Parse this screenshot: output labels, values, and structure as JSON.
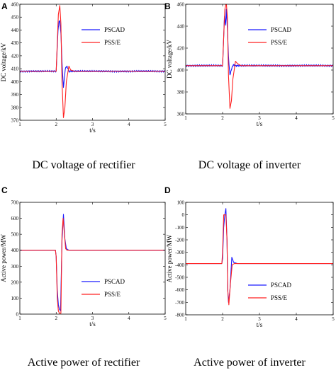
{
  "colors": {
    "pscad": "#1a1aff",
    "psse": "#ff2020"
  },
  "chart_data": [
    {
      "type": "line",
      "panel": "A",
      "caption": "DC voltage of rectifier",
      "xlabel": "t/s",
      "ylabel": "DC voltage/kV",
      "xlim": [
        1,
        5
      ],
      "ylim": [
        370,
        460
      ],
      "xticks": [
        1,
        2,
        3,
        4,
        5
      ],
      "yticks": [
        370,
        380,
        390,
        400,
        410,
        420,
        430,
        440,
        450,
        460
      ],
      "legend": "right",
      "series": [
        {
          "name": "PSCAD",
          "color": "pscad",
          "noise": 0.8,
          "x": [
            1,
            2.0,
            2.02,
            2.05,
            2.08,
            2.1,
            2.13,
            2.16,
            2.2,
            2.25,
            2.3,
            2.35,
            2.4,
            2.5,
            3,
            4,
            5
          ],
          "y": [
            408,
            408,
            420,
            440,
            446,
            447,
            438,
            415,
            395,
            410,
            412,
            408,
            408,
            408,
            408,
            408,
            408
          ]
        },
        {
          "name": "PSS/E",
          "color": "psse",
          "noise": 0,
          "x": [
            1,
            2.0,
            2.03,
            2.06,
            2.1,
            2.13,
            2.16,
            2.2,
            2.24,
            2.28,
            2.35,
            2.4,
            2.5,
            3,
            4,
            5
          ],
          "y": [
            408,
            408,
            430,
            452,
            459,
            445,
            400,
            372,
            380,
            400,
            412,
            409,
            408,
            408,
            408,
            408
          ]
        }
      ]
    },
    {
      "type": "line",
      "panel": "B",
      "caption": "DC voltage of inverter",
      "xlabel": "t/s",
      "ylabel": "DC voltage/kV",
      "xlim": [
        1,
        5
      ],
      "ylim": [
        360,
        460
      ],
      "xticks": [
        1,
        2,
        3,
        4,
        5
      ],
      "yticks": [
        360,
        380,
        400,
        420,
        440,
        460
      ],
      "legend": "right",
      "series": [
        {
          "name": "PSCAD",
          "color": "pscad",
          "noise": 1.0,
          "x": [
            1,
            2.0,
            2.02,
            2.05,
            2.08,
            2.1,
            2.13,
            2.16,
            2.2,
            2.25,
            2.3,
            2.35,
            2.4,
            2.5,
            3,
            4,
            5
          ],
          "y": [
            404,
            404,
            420,
            450,
            440,
            455,
            438,
            412,
            395,
            402,
            405,
            404,
            404,
            404,
            404,
            404,
            404
          ]
        },
        {
          "name": "PSS/E",
          "color": "psse",
          "noise": 0,
          "x": [
            1,
            2.0,
            2.03,
            2.06,
            2.1,
            2.13,
            2.16,
            2.2,
            2.24,
            2.28,
            2.35,
            2.4,
            2.5,
            3,
            4,
            5
          ],
          "y": [
            404,
            404,
            430,
            455,
            462,
            448,
            395,
            365,
            372,
            392,
            408,
            406,
            404,
            404,
            404,
            404
          ]
        }
      ]
    },
    {
      "type": "line",
      "panel": "C",
      "caption": "Active power of rectifier",
      "xlabel": "t/s",
      "ylabel": "Active power/MW",
      "xlim": [
        1,
        5
      ],
      "ylim": [
        0,
        700
      ],
      "xticks": [
        1,
        2,
        3,
        4,
        5
      ],
      "yticks": [
        0,
        100,
        200,
        300,
        400,
        500,
        600,
        700
      ],
      "legend": "bottom-right",
      "series": [
        {
          "name": "PSCAD",
          "color": "pscad",
          "noise": 0,
          "x": [
            1,
            1.98,
            2.0,
            2.03,
            2.06,
            2.09,
            2.12,
            2.16,
            2.2,
            2.24,
            2.28,
            2.35,
            3,
            4,
            5
          ],
          "y": [
            400,
            400,
            360,
            150,
            60,
            30,
            20,
            460,
            625,
            470,
            410,
            400,
            400,
            400,
            400
          ]
        },
        {
          "name": "PSS/E",
          "color": "psse",
          "noise": 0,
          "x": [
            1,
            1.98,
            2.0,
            2.03,
            2.06,
            2.09,
            2.13,
            2.16,
            2.19,
            2.22,
            2.26,
            2.3,
            3,
            4,
            5
          ],
          "y": [
            400,
            400,
            360,
            100,
            20,
            5,
            5,
            500,
            600,
            520,
            410,
            400,
            400,
            400,
            400
          ]
        }
      ]
    },
    {
      "type": "line",
      "panel": "D",
      "caption": "Active power of inverter",
      "xlabel": "t/s",
      "ylabel": "Active power/MW",
      "xlim": [
        1,
        5
      ],
      "ylim": [
        -800,
        100
      ],
      "xticks": [
        1,
        2,
        3,
        4,
        5
      ],
      "yticks": [
        -800,
        -700,
        -600,
        -500,
        -400,
        -300,
        -200,
        -100,
        0,
        100
      ],
      "legend": "bottom-right",
      "series": [
        {
          "name": "PSCAD",
          "color": "pscad",
          "noise": 0,
          "x": [
            1,
            1.98,
            2.0,
            2.03,
            2.06,
            2.09,
            2.12,
            2.14,
            2.16,
            2.2,
            2.25,
            2.3,
            2.4,
            3,
            4,
            5
          ],
          "y": [
            -390,
            -390,
            -350,
            -100,
            0,
            50,
            -200,
            -600,
            -700,
            -600,
            -340,
            -380,
            -390,
            -390,
            -390,
            -390
          ]
        },
        {
          "name": "PSS/E",
          "color": "psse",
          "noise": 0,
          "x": [
            1,
            1.98,
            2.0,
            2.03,
            2.06,
            2.09,
            2.12,
            2.14,
            2.17,
            2.21,
            2.26,
            2.32,
            3,
            4,
            5
          ],
          "y": [
            -390,
            -390,
            -300,
            0,
            0,
            0,
            -200,
            -600,
            -720,
            -560,
            -400,
            -390,
            -390,
            -390,
            -390
          ]
        }
      ]
    }
  ]
}
